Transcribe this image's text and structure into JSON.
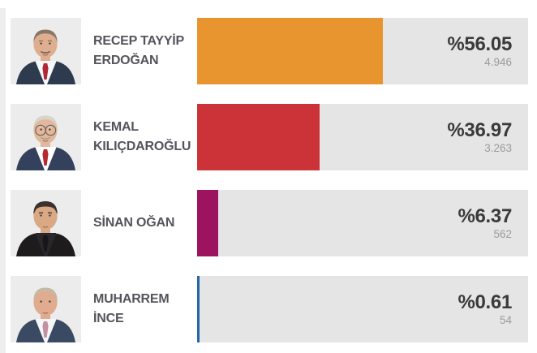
{
  "chart_data": {
    "type": "bar",
    "orientation": "horizontal",
    "title": "",
    "categories": [
      "RECEP TAYYİP ERDOĞAN",
      "KEMAL KILIÇDAROĞLU",
      "SİNAN OĞAN",
      "MUHARREM İNCE"
    ],
    "values": [
      56.05,
      36.97,
      6.37,
      0.61
    ],
    "value_labels": [
      "%56.05",
      "%36.97",
      "%6.37",
      "%0.61"
    ],
    "secondary_values": [
      "4.946",
      "3.263",
      "562",
      "54"
    ],
    "bar_colors": [
      "#e8952f",
      "#cb3339",
      "#9c145f",
      "#2066a9"
    ],
    "track_color": "#e6e5e5",
    "xlim": [
      0,
      100
    ],
    "legend": "none",
    "grid": false
  },
  "candidates": [
    {
      "name_line1": "RECEP TAYYİP",
      "name_line2": "ERDOĞAN",
      "percent": 56.05,
      "percent_label": "%56.05",
      "count": "4.946",
      "bar_color": "#e8952f",
      "avatar": {
        "skin": "#dfae90",
        "hair": "#8a7666",
        "hair_style": "receding",
        "suit": "#2e3a4e",
        "shirt": "#f5f8fa",
        "tie": "#b32735",
        "glasses": false,
        "mustache": true,
        "mustache_color": "#77624f"
      }
    },
    {
      "name_line1": "KEMAL",
      "name_line2": "KILIÇDAROĞLU",
      "percent": 36.97,
      "percent_label": "%36.97",
      "count": "3.263",
      "bar_color": "#cb3339",
      "avatar": {
        "skin": "#e3b79b",
        "hair": "#d8d3cb",
        "hair_style": "receding",
        "suit": "#33415c",
        "shirt": "#ffffff",
        "tie": "#b5292f",
        "glasses": true,
        "mustache": true,
        "mustache_color": "#aaa195"
      }
    },
    {
      "name_line1": "SİNAN OĞAN",
      "name_line2": "",
      "percent": 6.37,
      "percent_label": "%6.37",
      "count": "562",
      "bar_color": "#9c145f",
      "avatar": {
        "skin": "#d9a884",
        "hair": "#3a322e",
        "hair_style": "full",
        "suit": "#1e1b1d",
        "shirt": "#2a272a",
        "tie": "#19161a",
        "glasses": false,
        "mustache": false,
        "mustache_color": "#3a322e"
      }
    },
    {
      "name_line1": "MUHARREM",
      "name_line2": "İNCE",
      "percent": 0.61,
      "percent_label": "%0.61",
      "count": "54",
      "bar_color": "#2066a9",
      "avatar": {
        "skin": "#e0ab8e",
        "hair": "#c5b8a4",
        "hair_style": "receding",
        "suit": "#3a4a63",
        "shirt": "#f4f6f8",
        "tie": "#c48fa2",
        "glasses": false,
        "mustache": false,
        "mustache_color": "#c5b8a4"
      }
    }
  ]
}
